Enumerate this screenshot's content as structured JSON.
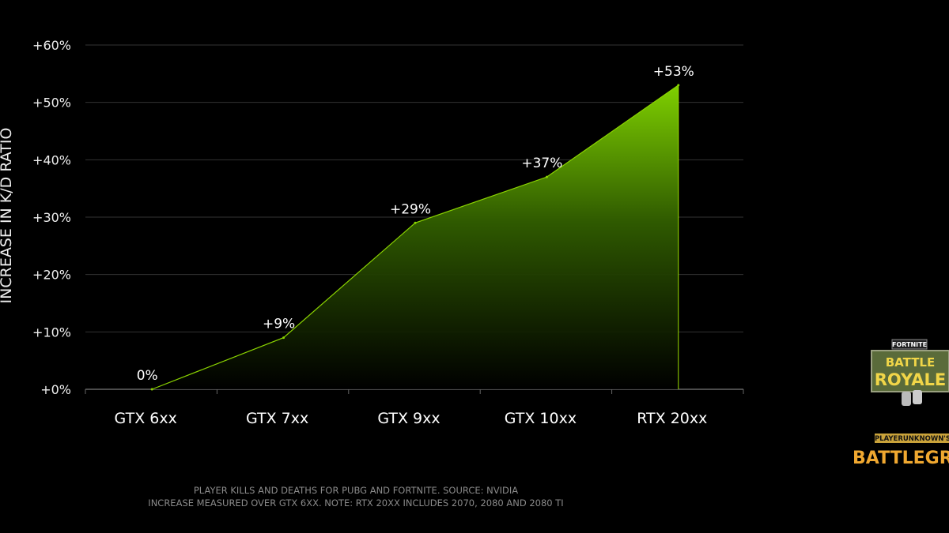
{
  "chart_data": {
    "type": "area",
    "categories": [
      "GTX 6xx",
      "GTX 7xx",
      "GTX 9xx",
      "GTX 10xx",
      "RTX 20xx"
    ],
    "values": [
      0,
      9,
      29,
      37,
      53
    ],
    "data_labels": [
      "0%",
      "+9%",
      "+29%",
      "+37%",
      "+53%"
    ],
    "ylabel": "INCREASE IN K/D RATIO",
    "ylim": [
      0,
      60
    ],
    "yticks": [
      "+0%",
      "+10%",
      "+20%",
      "+30%",
      "+40%",
      "+50%",
      "+60%"
    ],
    "grid": true,
    "fill_color": "#76b900",
    "notes": [
      "PLAYER KILLS AND DEATHS FOR PUBG AND FORTNITE. SOURCE: NVIDIA",
      "INCREASE MEASURED OVER GTX 6XX. NOTE: RTX 20XX INCLUDES 2070, 2080 AND 2080 TI"
    ]
  },
  "logos": {
    "fortnite": {
      "top": "FORTNITE",
      "line1": "BATTLE",
      "line2": "ROYALE"
    },
    "pubg": {
      "top": "PLAYERUNKNOWN'S",
      "main": "BATTLEGROUNDS"
    }
  }
}
